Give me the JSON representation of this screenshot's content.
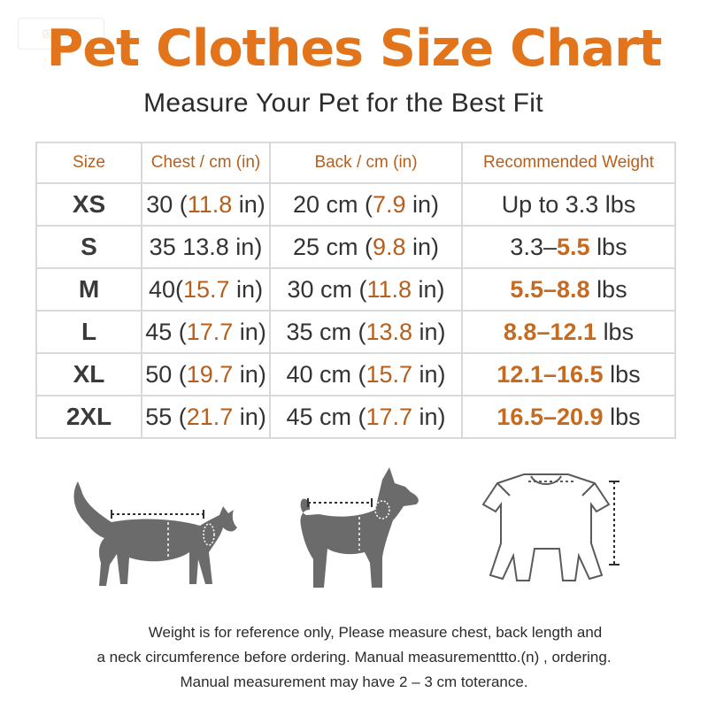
{
  "watermark": "店铺名称",
  "title": "Pet Clothes Size Chart",
  "subtitle": "Measure Your Pet for the Best Fit",
  "table": {
    "headers": [
      "Size",
      "Chest / cm (in)",
      "Back / cm (in)",
      "Recommended Weight"
    ],
    "rows": [
      {
        "size": "XS",
        "chest_cm": "30",
        "chest_in": "11.8",
        "back_cm": "20 cm",
        "back_in": "7.9",
        "w1": "Up to 3.3",
        "w2": "",
        "unit": "lbs"
      },
      {
        "size": "S",
        "chest_cm": "35",
        "chest_in": "13.8",
        "back_cm": "25 cm",
        "back_in": "9.8",
        "w1": "3.3",
        "w2": "5.5",
        "unit": "lbs"
      },
      {
        "size": "M",
        "chest_cm": "40",
        "chest_in": "15.7",
        "back_cm": "30 cm",
        "back_in": "11.8",
        "w1": "5.5",
        "w2": "8.8",
        "unit": "lbs"
      },
      {
        "size": "L",
        "chest_cm": "45",
        "chest_in": "17.7",
        "back_cm": "35 cm",
        "back_in": "13.8",
        "w1": "8.8",
        "w2": "12.1",
        "unit": "lbs"
      },
      {
        "size": "XL",
        "chest_cm": "50",
        "chest_in": "19.7",
        "back_cm": "40 cm",
        "back_in": "15.7",
        "w1": "12.1",
        "w2": "16.5",
        "unit": "lbs"
      },
      {
        "size": "2XL",
        "chest_cm": "55",
        "chest_in": "21.7",
        "back_cm": "45 cm",
        "back_in": "17.7",
        "w1": "16.5",
        "w2": "20.9",
        "unit": "lbs"
      }
    ]
  },
  "illustrations": [
    "cat-icon",
    "dog-icon",
    "pet-garment-icon"
  ],
  "notes": [
    "Weight is for reference only, Please measure chest, back length and",
    "a neck circumference before ordering. Manual measurementtto.(n) , ordering.",
    "Manual measurement may have 2 – 3 cm toterance."
  ],
  "colors": {
    "accent": "#e2741b",
    "accent_text": "#b65f1d",
    "silhouette": "#6b6b6b",
    "grid": "#d9d9d9"
  }
}
